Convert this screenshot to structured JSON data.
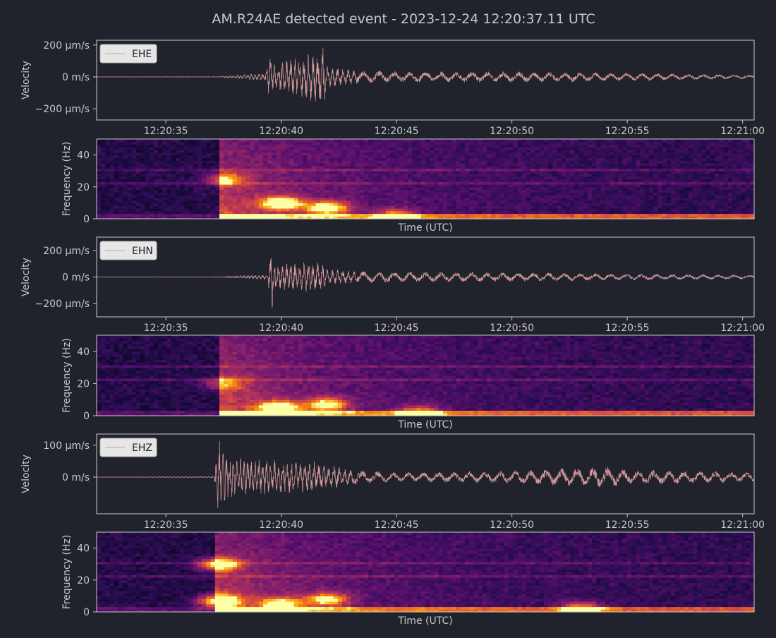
{
  "figure": {
    "title": "AM.R24AE detected event - 2023-12-24 12:20:37.11 UTC",
    "colors": {
      "background": "#20232c",
      "axes_frame": "#c8c8c8",
      "text": "#c8c8c8",
      "trace": "#d49a9a",
      "legend_bg": "#e6e6e6",
      "legend_text": "#222222"
    }
  },
  "chart_data": [
    {
      "type": "line",
      "channel": "EHE",
      "ylabel": "Velocity",
      "legend": "EHE",
      "legend_position": "upper-left",
      "x_range": [
        "12:20:32.0",
        "12:21:00.5"
      ],
      "x_ticks": [
        "12:20:35",
        "12:20:40",
        "12:20:45",
        "12:20:50",
        "12:20:55",
        "12:21:00"
      ],
      "x_tick_seconds": [
        35,
        40,
        45,
        50,
        55,
        60
      ],
      "y_ticks": [
        "200 µm/s",
        "0 m/s",
        "−200 µm/s"
      ],
      "y_tick_values": [
        200,
        0,
        -200
      ],
      "ylim": [
        -270,
        230
      ],
      "units": "µm/s",
      "event_onset_s": 37.3,
      "envelope_points": {
        "t_s": [
          32,
          37.3,
          39.3,
          39.5,
          39.7,
          41.7,
          41.8,
          42.0,
          43,
          45,
          50,
          55,
          60.5
        ],
        "peak_um_s": [
          0.5,
          2,
          25,
          140,
          80,
          180,
          220,
          70,
          45,
          35,
          35,
          25,
          12
        ]
      }
    },
    {
      "type": "heatmap",
      "channel": "EHE",
      "ylabel": "Frequency (Hz)",
      "xlabel": "Time (UTC)",
      "y_ticks": [
        "0",
        "20",
        "40"
      ],
      "y_tick_values": [
        0,
        20,
        40
      ],
      "ylim": [
        0,
        50
      ],
      "colormap": "inferno",
      "energy_patches": [
        {
          "t_s": 37.5,
          "f_hz": 25,
          "level": 0.55
        },
        {
          "t_s": 40.0,
          "f_hz": 10,
          "level": 0.95
        },
        {
          "t_s": 42.0,
          "f_hz": 7,
          "level": 0.9
        },
        {
          "t_s": 45.0,
          "f_hz": 2,
          "level": 0.7
        }
      ]
    },
    {
      "type": "line",
      "channel": "EHN",
      "ylabel": "Velocity",
      "legend": "EHN",
      "legend_position": "upper-left",
      "x_range": [
        "12:20:32.0",
        "12:21:00.5"
      ],
      "x_ticks": [
        "12:20:35",
        "12:20:40",
        "12:20:45",
        "12:20:50",
        "12:20:55",
        "12:21:00"
      ],
      "x_tick_seconds": [
        35,
        40,
        45,
        50,
        55,
        60
      ],
      "y_ticks": [
        "200 µm/s",
        "0 m/s",
        "−200 µm/s"
      ],
      "y_tick_values": [
        200,
        0,
        -200
      ],
      "ylim": [
        -300,
        300
      ],
      "units": "µm/s",
      "event_onset_s": 37.3,
      "envelope_points": {
        "t_s": [
          32,
          37.3,
          39.4,
          39.6,
          39.8,
          41.8,
          42.0,
          43,
          45,
          50,
          55,
          60.5
        ],
        "peak_um_s": [
          0.5,
          3,
          20,
          260,
          100,
          120,
          60,
          50,
          40,
          35,
          25,
          15
        ]
      }
    },
    {
      "type": "heatmap",
      "channel": "EHN",
      "ylabel": "Frequency (Hz)",
      "xlabel": "Time (UTC)",
      "y_ticks": [
        "0",
        "20",
        "40"
      ],
      "y_tick_values": [
        0,
        20,
        40
      ],
      "ylim": [
        0,
        50
      ],
      "colormap": "inferno",
      "energy_patches": [
        {
          "t_s": 37.5,
          "f_hz": 20,
          "level": 0.45
        },
        {
          "t_s": 39.9,
          "f_hz": 5,
          "level": 0.95
        },
        {
          "t_s": 42.0,
          "f_hz": 7,
          "level": 0.8
        },
        {
          "t_s": 46.0,
          "f_hz": 2,
          "level": 0.7
        }
      ]
    },
    {
      "type": "line",
      "channel": "EHZ",
      "ylabel": "Velocity",
      "legend": "EHZ",
      "legend_position": "upper-left",
      "x_range": [
        "12:20:32.0",
        "12:21:00.5"
      ],
      "x_ticks": [
        "12:20:35",
        "12:20:40",
        "12:20:45",
        "12:20:50",
        "12:20:55",
        "12:21:00"
      ],
      "x_tick_seconds": [
        35,
        40,
        45,
        50,
        55,
        60
      ],
      "y_ticks": [
        "100 µm/s",
        "0 m/s"
      ],
      "y_tick_values": [
        100,
        0
      ],
      "ylim": [
        -115,
        135
      ],
      "units": "µm/s",
      "event_onset_s": 37.1,
      "envelope_points": {
        "t_s": [
          32,
          37.1,
          37.25,
          37.5,
          38,
          40,
          41.5,
          43,
          45,
          50,
          54,
          55,
          60.5
        ],
        "peak_um_s": [
          0.5,
          2,
          130,
          80,
          60,
          55,
          50,
          25,
          15,
          20,
          35,
          25,
          15
        ]
      }
    },
    {
      "type": "heatmap",
      "channel": "EHZ",
      "ylabel": "Frequency (Hz)",
      "xlabel": "Time (UTC)",
      "y_ticks": [
        "0",
        "20",
        "40"
      ],
      "y_tick_values": [
        0,
        20,
        40
      ],
      "ylim": [
        0,
        50
      ],
      "colormap": "inferno",
      "energy_patches": [
        {
          "t_s": 37.3,
          "f_hz": 30,
          "level": 0.85
        },
        {
          "t_s": 37.3,
          "f_hz": 7,
          "level": 0.95
        },
        {
          "t_s": 40.0,
          "f_hz": 5,
          "level": 0.8
        },
        {
          "t_s": 42.0,
          "f_hz": 8,
          "level": 0.75
        },
        {
          "t_s": 53.0,
          "f_hz": 2,
          "level": 0.8
        }
      ]
    }
  ]
}
